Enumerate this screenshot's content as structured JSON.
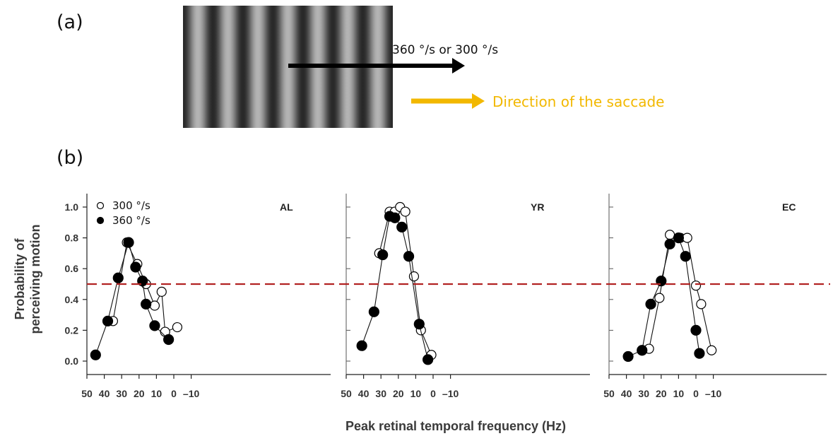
{
  "panel_a": {
    "label": "(a)",
    "speed_label": "360 °/s or 300 °/s",
    "direction_label": "Direction of the saccade",
    "direction_color": "#f2b800"
  },
  "panel_b": {
    "label": "(b)"
  },
  "chart_data": {
    "type": "scatter",
    "xlabel": "Peak retinal temporal frequency (Hz)",
    "ylabel_lines": [
      "Probability of",
      "perceiving motion"
    ],
    "xlim": [
      50,
      -15
    ],
    "ylim": [
      0,
      1.05
    ],
    "xticks": [
      "50",
      "40",
      "30",
      "20",
      "10",
      "0",
      "–10"
    ],
    "yticks": [
      "0.0",
      "0.2",
      "0.4",
      "0.6",
      "0.8",
      "1.0"
    ],
    "threshold": 0.5,
    "threshold_color": "#b22222",
    "legend": [
      {
        "name": "300 °/s",
        "marker": "open"
      },
      {
        "name": "360 °/s",
        "marker": "filled"
      }
    ],
    "subplots": [
      {
        "name": "AL",
        "series": [
          {
            "name": "300 °/s",
            "marker": "open",
            "x": [
              35,
              27,
              21,
              16,
              11,
              7,
              5,
              -2
            ],
            "y": [
              0.26,
              0.77,
              0.63,
              0.5,
              0.36,
              0.45,
              0.19,
              0.22
            ]
          },
          {
            "name": "360 °/s",
            "marker": "filled",
            "x": [
              45,
              38,
              32,
              26,
              22,
              18,
              16,
              11,
              3
            ],
            "y": [
              0.04,
              0.26,
              0.54,
              0.77,
              0.61,
              0.52,
              0.37,
              0.23,
              0.14
            ]
          }
        ]
      },
      {
        "name": "YR",
        "series": [
          {
            "name": "300 °/s",
            "marker": "open",
            "x": [
              31,
              25,
              22,
              19,
              16,
              11,
              7,
              1
            ],
            "y": [
              0.7,
              0.97,
              0.97,
              1.0,
              0.97,
              0.55,
              0.2,
              0.04
            ]
          },
          {
            "name": "360 °/s",
            "marker": "filled",
            "x": [
              41,
              34,
              29,
              25,
              22,
              18,
              14,
              8,
              3
            ],
            "y": [
              0.1,
              0.32,
              0.69,
              0.94,
              0.93,
              0.87,
              0.68,
              0.24,
              0.01
            ]
          }
        ]
      },
      {
        "name": "EC",
        "series": [
          {
            "name": "300 °/s",
            "marker": "open",
            "x": [
              27,
              21,
              15,
              9,
              5,
              0,
              -3,
              -9
            ],
            "y": [
              0.08,
              0.41,
              0.82,
              0.8,
              0.8,
              0.49,
              0.37,
              0.07
            ]
          },
          {
            "name": "360 °/s",
            "marker": "filled",
            "x": [
              39,
              31,
              26,
              20,
              15,
              10,
              6,
              0,
              -2
            ],
            "y": [
              0.03,
              0.07,
              0.37,
              0.52,
              0.76,
              0.8,
              0.68,
              0.2,
              0.05
            ]
          }
        ]
      }
    ]
  }
}
